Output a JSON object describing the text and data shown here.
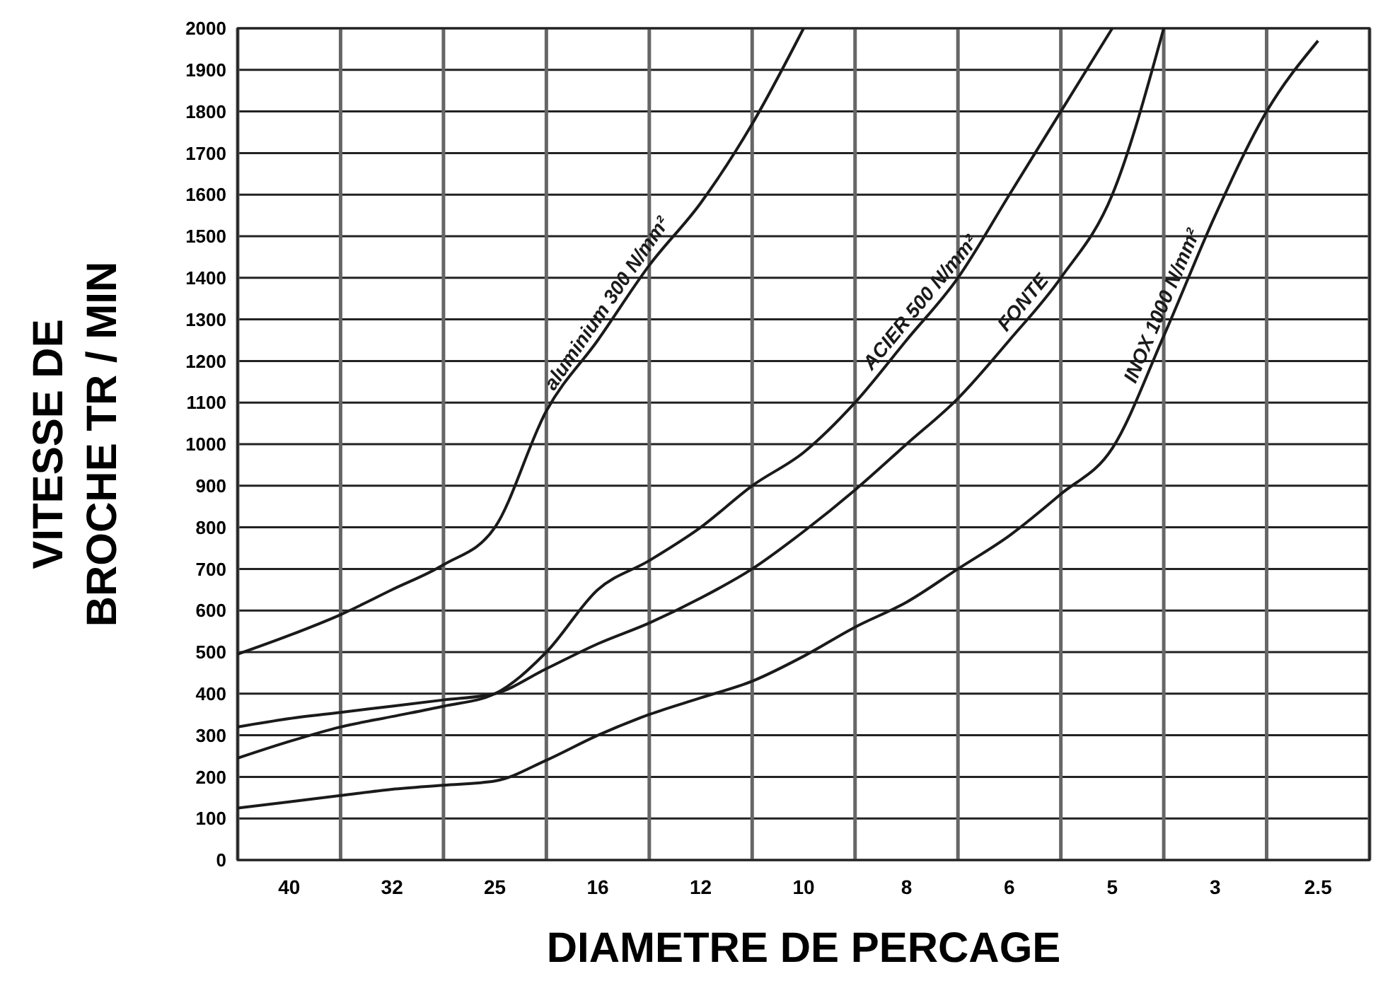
{
  "chart_data": {
    "type": "line",
    "xlabel": "DIAMETRE DE PERCAGE",
    "ylabel": "VITESSE DE\nBROCHE TR / MIN",
    "categories": [
      null,
      "40",
      null,
      "32",
      null,
      "25",
      null,
      "16",
      null,
      "12",
      null,
      "10",
      null,
      "8",
      null,
      "6",
      null,
      "5",
      null,
      "3",
      null,
      "2.5",
      null
    ],
    "ylim": [
      0,
      2000
    ],
    "yticks": [
      0,
      100,
      200,
      300,
      400,
      500,
      600,
      700,
      800,
      900,
      1000,
      1100,
      1200,
      1300,
      1400,
      1500,
      1600,
      1700,
      1800,
      1900,
      2000
    ],
    "grid": true,
    "legend": false,
    "line_style": "solid",
    "series": [
      {
        "name": "aluminium 300 N/mm²",
        "color": "#1a1a1a",
        "values": [
          495,
          540,
          590,
          650,
          710,
          800,
          1080,
          1250,
          1430,
          1580,
          1770,
          2000,
          null,
          null,
          null,
          null,
          null,
          null,
          null,
          null,
          null,
          null,
          null
        ]
      },
      {
        "name": "ACIER 500 N/mm²",
        "color": "#1a1a1a",
        "values": [
          245,
          285,
          320,
          345,
          370,
          400,
          500,
          650,
          720,
          800,
          900,
          980,
          1100,
          1250,
          1400,
          1600,
          1800,
          2000,
          null,
          null,
          null,
          null,
          null
        ]
      },
      {
        "name": "FONTE",
        "color": "#1a1a1a",
        "values": [
          320,
          340,
          355,
          370,
          385,
          400,
          460,
          520,
          570,
          630,
          700,
          790,
          890,
          1000,
          1110,
          1250,
          1400,
          1600,
          2000,
          null,
          null,
          null,
          null
        ]
      },
      {
        "name": "INOX 1000 N/mm²",
        "color": "#1a1a1a",
        "values": [
          125,
          140,
          155,
          170,
          180,
          190,
          240,
          300,
          350,
          390,
          430,
          490,
          560,
          620,
          700,
          780,
          880,
          990,
          1260,
          1550,
          1800,
          1970,
          null
        ]
      }
    ]
  }
}
